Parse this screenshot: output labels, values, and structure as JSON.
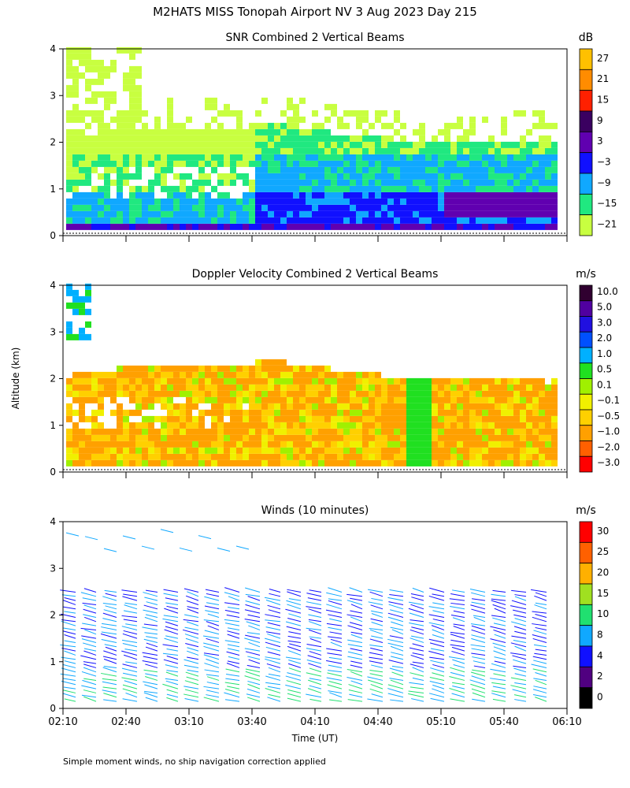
{
  "title": "M2HATS MISS Tonopah Airport NV   3 Aug 2023 Day 215",
  "xlabel": "Time (UT)",
  "ylabel": "Altitude (km)",
  "footnote": "Simple moment winds, no ship navigation correction applied",
  "chart_data": [
    {
      "type": "heatmap",
      "title": "SNR Combined 2 Vertical Beams",
      "units": "dB",
      "x_ticks": [
        "02:10",
        "02:40",
        "03:10",
        "03:40",
        "04:10",
        "04:40",
        "05:10",
        "05:40",
        "06:10"
      ],
      "y_ticks": [
        0,
        1,
        2,
        3,
        4
      ],
      "ylim": [
        0,
        4
      ],
      "colorbar": {
        "labels": [
          "27",
          "21",
          "15",
          "9",
          "3",
          "−3",
          "−9",
          "−15",
          "−21"
        ],
        "colors": [
          "#ffc000",
          "#ff8c00",
          "#ff2000",
          "#3a0060",
          "#6000b0",
          "#1010ff",
          "#10a8ff",
          "#20e880",
          "#c8ff40"
        ]
      }
    },
    {
      "type": "heatmap",
      "title": "Doppler Velocity Combined 2 Vertical Beams",
      "units": "m/s",
      "x_ticks": [
        "02:10",
        "02:40",
        "03:10",
        "03:40",
        "04:10",
        "04:40",
        "05:10",
        "05:40",
        "06:10"
      ],
      "y_ticks": [
        0,
        1,
        2,
        3,
        4
      ],
      "ylim": [
        0,
        4
      ],
      "colorbar": {
        "labels": [
          "10.0",
          "5.0",
          "3.0",
          "2.0",
          "1.0",
          "0.5",
          "0.1",
          "−0.1",
          "−0.5",
          "−1.0",
          "−2.0",
          "−3.0"
        ],
        "colors": [
          "#300030",
          "#5000a0",
          "#2010e0",
          "#0050ff",
          "#00b0ff",
          "#20e020",
          "#a0f000",
          "#f0f000",
          "#ffd000",
          "#ffa000",
          "#ff6000",
          "#ff0000"
        ]
      }
    },
    {
      "type": "scatter",
      "title": "Winds (10 minutes)",
      "units": "m/s",
      "x_ticks": [
        "02:10",
        "02:40",
        "03:10",
        "03:40",
        "04:10",
        "04:40",
        "05:10",
        "05:40",
        "06:10"
      ],
      "y_ticks": [
        0,
        1,
        2,
        3,
        4
      ],
      "ylim": [
        0,
        4
      ],
      "colorbar": {
        "labels": [
          "30",
          "25",
          "20",
          "15",
          "10",
          "8",
          "4",
          "2",
          "0"
        ],
        "colors": [
          "#ff0000",
          "#ff6000",
          "#ffb000",
          "#a0e020",
          "#20e070",
          "#10a8ff",
          "#1010ff",
          "#500080",
          "#000000"
        ]
      }
    }
  ]
}
